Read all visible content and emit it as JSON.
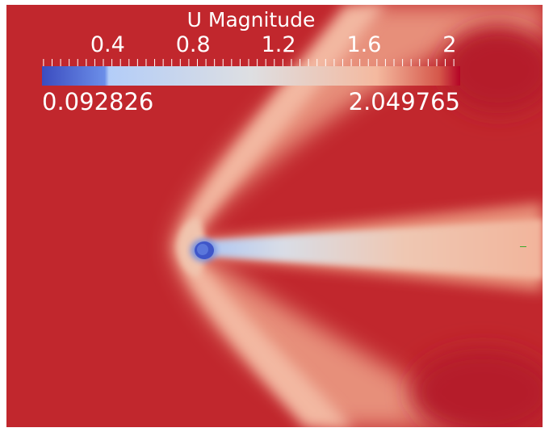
{
  "colorbar": {
    "title": "U Magnitude",
    "range_min": 0.092826,
    "range_max": 2.049765,
    "min_label": "0.092826",
    "max_label": "2.049765",
    "ticks": [
      {
        "value": 0.4,
        "label": "0.4"
      },
      {
        "value": 0.8,
        "label": "0.8"
      },
      {
        "value": 1.2,
        "label": "1.2"
      },
      {
        "value": 1.6,
        "label": "1.6"
      },
      {
        "value": 2.0,
        "label": "2"
      }
    ],
    "colormap": [
      "#3b4cc0",
      "#b8d0f9",
      "#dddddd",
      "#f5c4ad",
      "#b40426"
    ]
  },
  "colors": {
    "background_field": "#c1272d",
    "wake_light": "#f0b39a",
    "cylinder": "#4f6ad8",
    "page_background": "#ffffff",
    "probe_marker": "#3aa82b"
  }
}
